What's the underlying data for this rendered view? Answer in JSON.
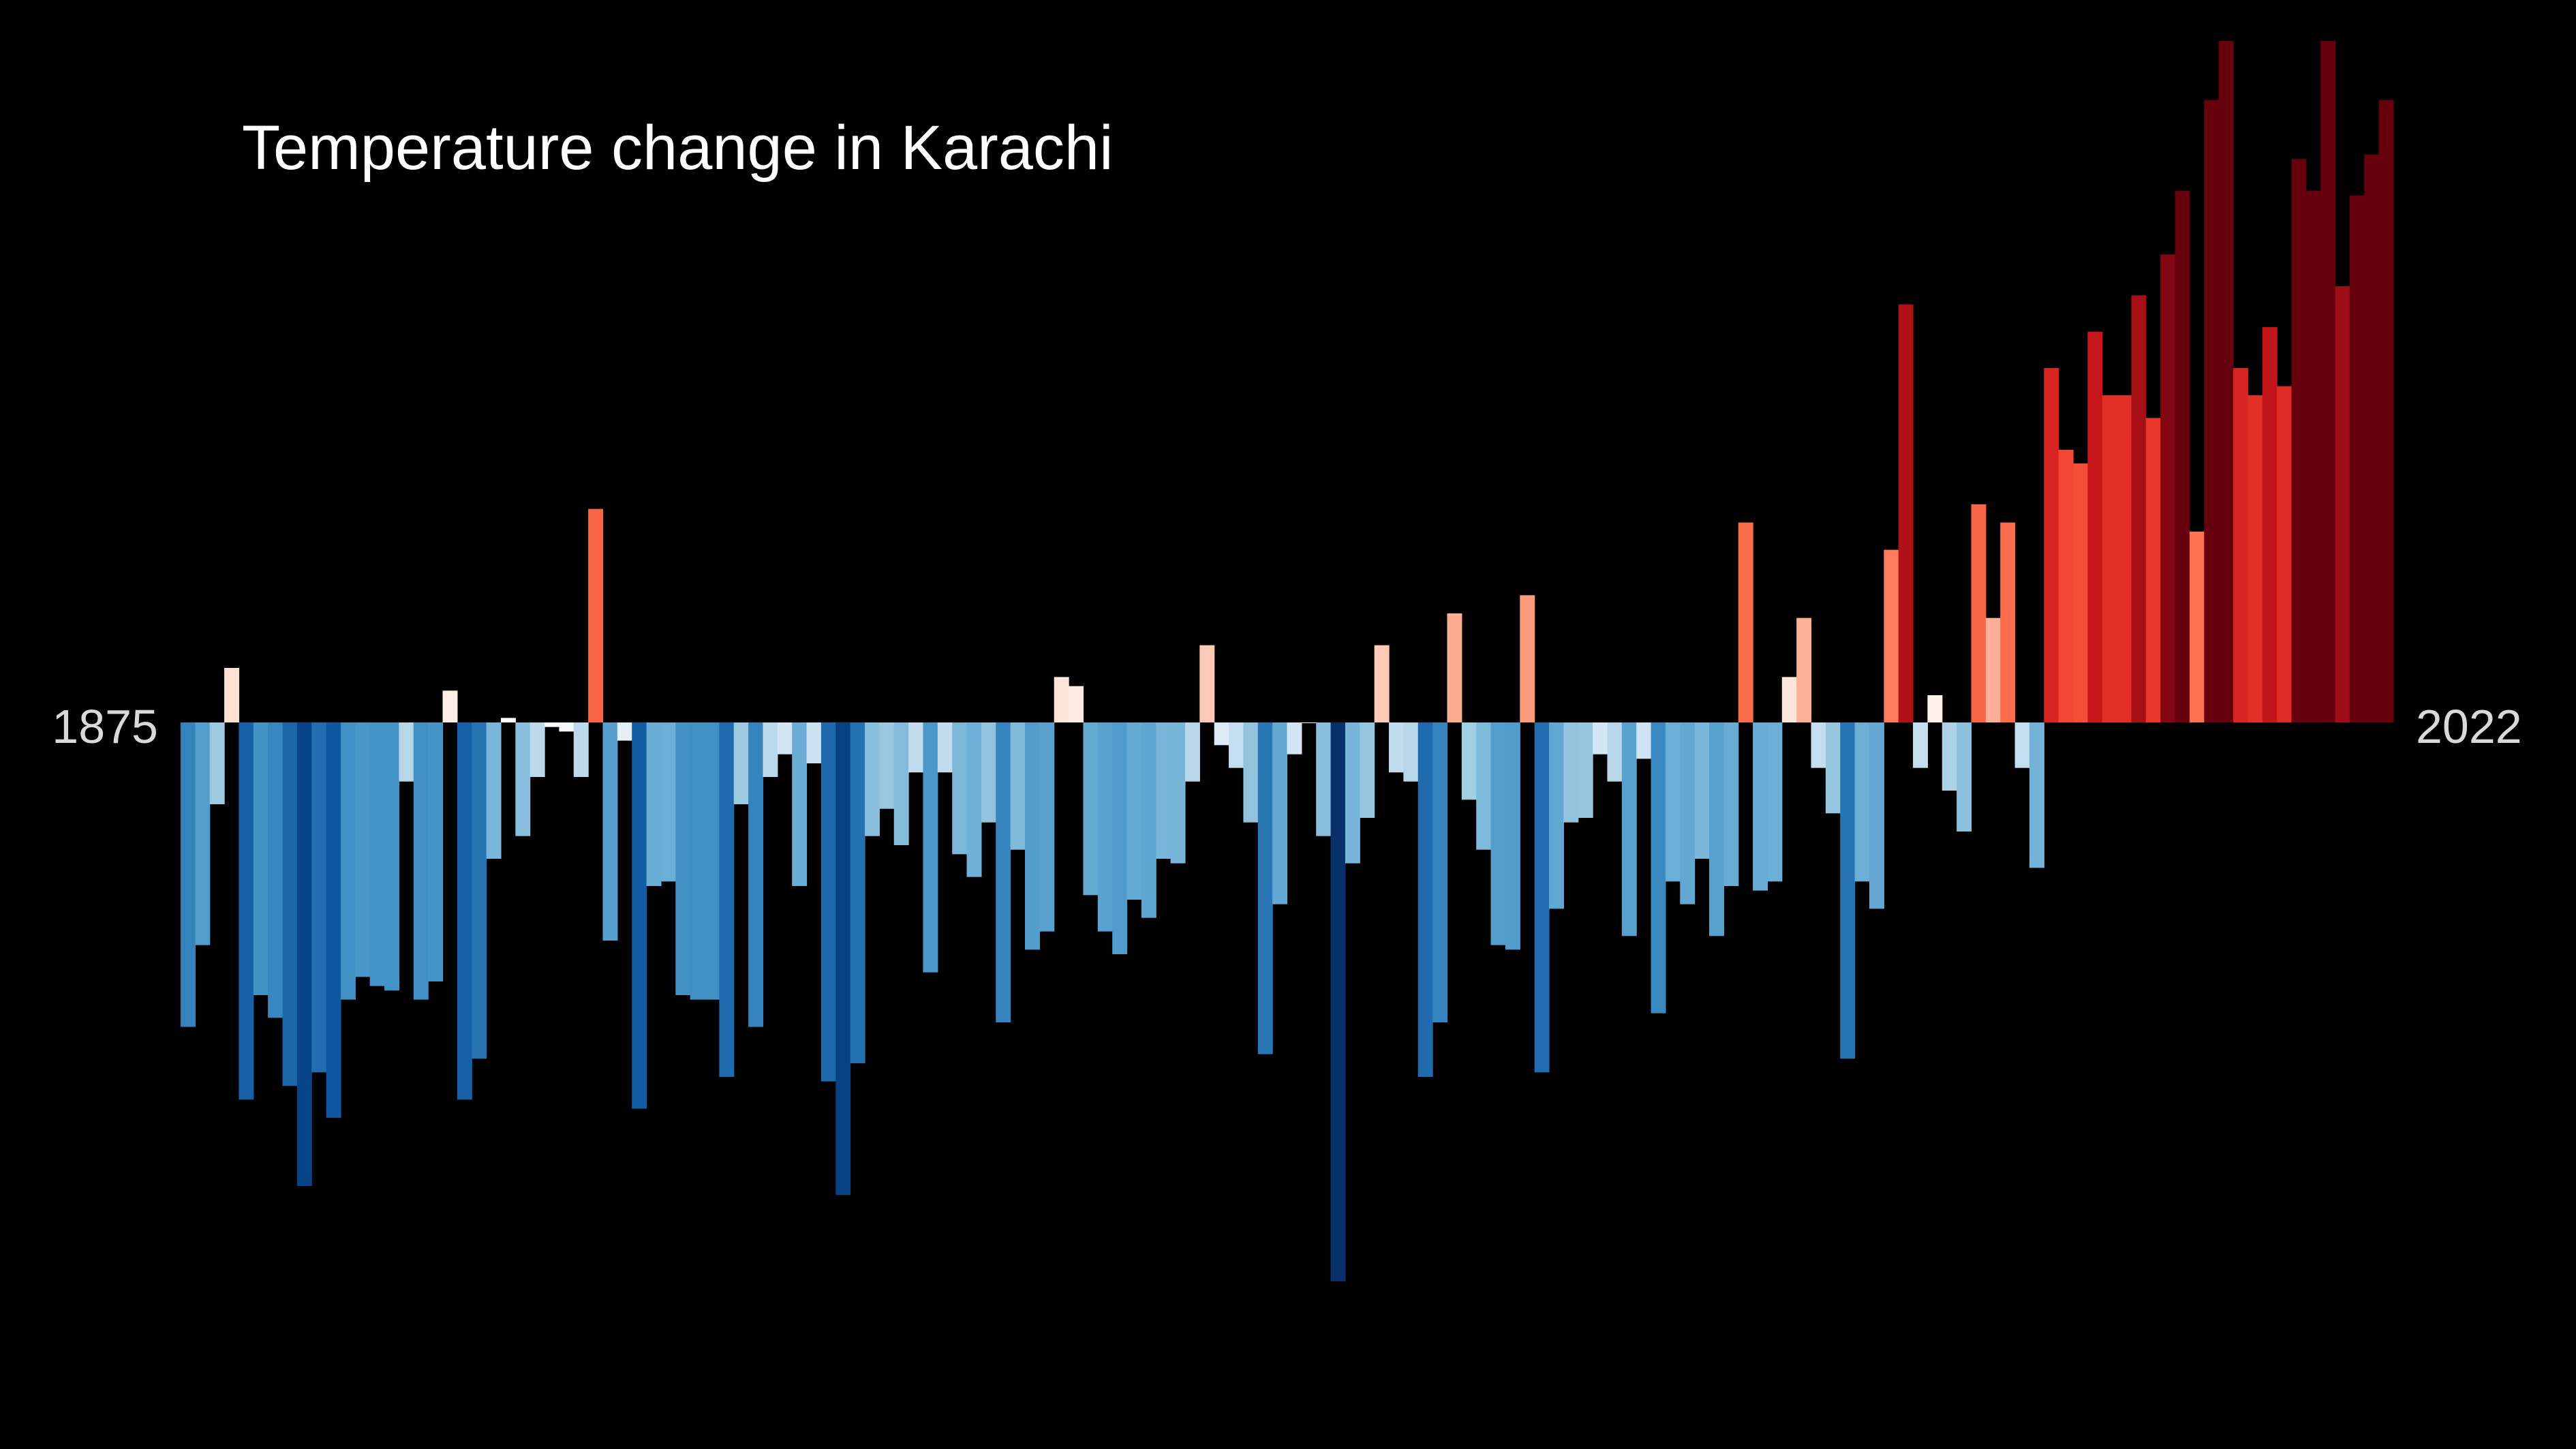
{
  "chart_data": {
    "type": "bar",
    "title": "Temperature change in Karachi",
    "xlabel": "",
    "ylabel": "",
    "start_year_label": "1875",
    "end_year_label": "2022",
    "grid": false,
    "legend": "none",
    "ylim": [
      -1.2,
      1.4
    ],
    "x_start": 1875,
    "x_end": 2022,
    "values": [
      -0.67,
      -0.49,
      -0.18,
      0.12,
      -0.83,
      -0.6,
      -0.65,
      -0.8,
      -1.02,
      -0.77,
      -0.87,
      -0.61,
      -0.56,
      -0.58,
      -0.59,
      -0.13,
      -0.61,
      -0.57,
      0.07,
      -0.83,
      -0.74,
      -0.3,
      0.01,
      -0.25,
      -0.12,
      -0.01,
      -0.02,
      -0.12,
      0.47,
      -0.48,
      -0.04,
      -0.85,
      -0.36,
      -0.35,
      -0.6,
      -0.61,
      -0.61,
      -0.78,
      -0.18,
      -0.67,
      -0.12,
      -0.07,
      -0.36,
      -0.09,
      -0.79,
      -1.04,
      -0.75,
      -0.25,
      -0.19,
      -0.27,
      -0.11,
      -0.55,
      -0.11,
      -0.29,
      -0.34,
      -0.22,
      -0.66,
      -0.28,
      -0.5,
      -0.46,
      0.1,
      0.08,
      -0.38,
      -0.46,
      -0.51,
      -0.39,
      -0.43,
      -0.3,
      -0.31,
      -0.13,
      0.17,
      -0.05,
      -0.1,
      -0.22,
      -0.73,
      -0.4,
      -0.07,
      0.0,
      -0.25,
      -1.23,
      -0.31,
      -0.21,
      0.17,
      -0.11,
      -0.13,
      -0.78,
      -0.66,
      0.24,
      -0.17,
      -0.28,
      -0.49,
      -0.5,
      0.28,
      -0.77,
      -0.41,
      -0.22,
      -0.21,
      -0.07,
      -0.13,
      -0.47,
      -0.08,
      -0.64,
      -0.35,
      -0.4,
      -0.3,
      -0.47,
      -0.36,
      0.44,
      -0.37,
      -0.35,
      0.1,
      0.23,
      -0.1,
      -0.2,
      -0.74,
      -0.35,
      -0.41,
      0.38,
      0.92,
      -0.1,
      0.06,
      -0.15,
      -0.24,
      0.48,
      0.23,
      0.44,
      -0.1,
      -0.32,
      0.78,
      0.6,
      0.57,
      0.86,
      0.72,
      0.72,
      0.94,
      0.67,
      1.03,
      1.17,
      0.42,
      1.37,
      1.5,
      0.78,
      0.72,
      0.87,
      0.74,
      1.24,
      1.17,
      1.5,
      0.96,
      1.16,
      1.25,
      1.37
    ]
  }
}
